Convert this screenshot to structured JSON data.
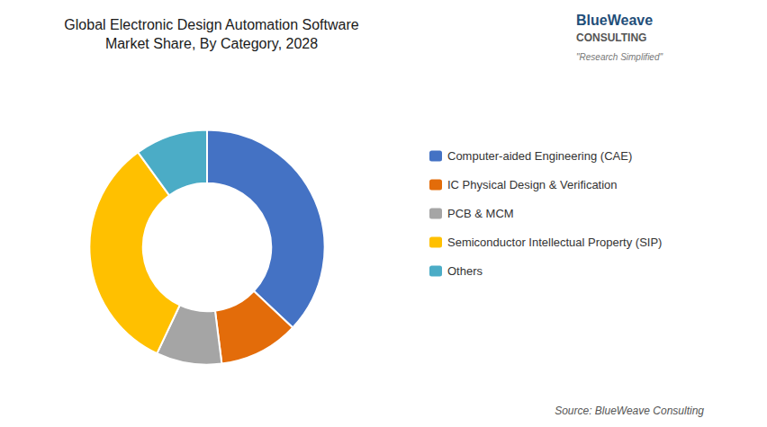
{
  "chart_data": {
    "type": "pie",
    "title": "Global Electronic Design Automation Software\nMarket Share, By Category, 2028",
    "categories": [
      "Computer-aided Engineering (CAE)",
      "IC Physical Design & Verification",
      "PCB & MCM",
      "Semiconductor Intellectual Property (SIP)",
      "Others"
    ],
    "values": [
      37,
      11,
      9,
      33,
      10
    ],
    "colors": [
      "#4472C4",
      "#E36C0A",
      "#A5A5A5",
      "#FFC000",
      "#4BACC6"
    ],
    "legend": "right",
    "annotations": [
      "Source: BlueWeave Consulting",
      "BlueWeave",
      "CONSULTING",
      "\"Research Simplified\""
    ]
  }
}
